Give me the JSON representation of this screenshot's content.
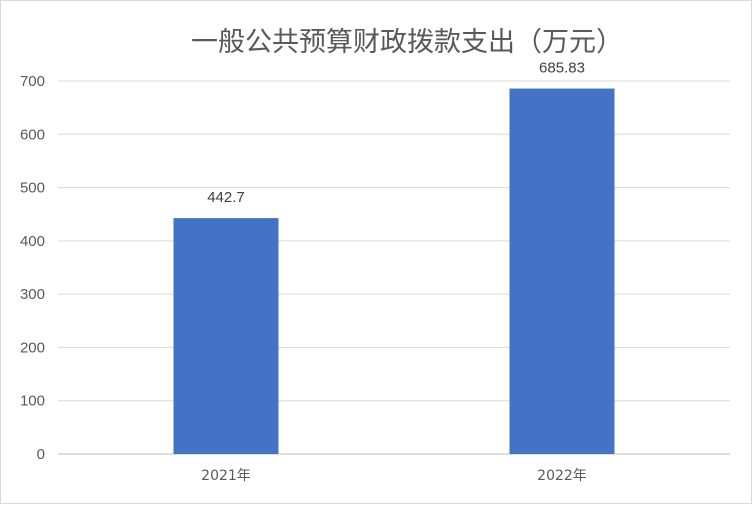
{
  "chart_data": {
    "type": "bar",
    "title": "一般公共预算财政拨款支出（万元）",
    "categories": [
      "2021年",
      "2022年"
    ],
    "values": [
      442.7,
      685.83
    ],
    "value_labels": [
      "442.7",
      "685.83"
    ],
    "ylim": [
      0,
      700
    ],
    "yticks": [
      0,
      100,
      200,
      300,
      400,
      500,
      600,
      700
    ],
    "grid": true,
    "legend": "none",
    "bar_color": "#4472C4"
  }
}
